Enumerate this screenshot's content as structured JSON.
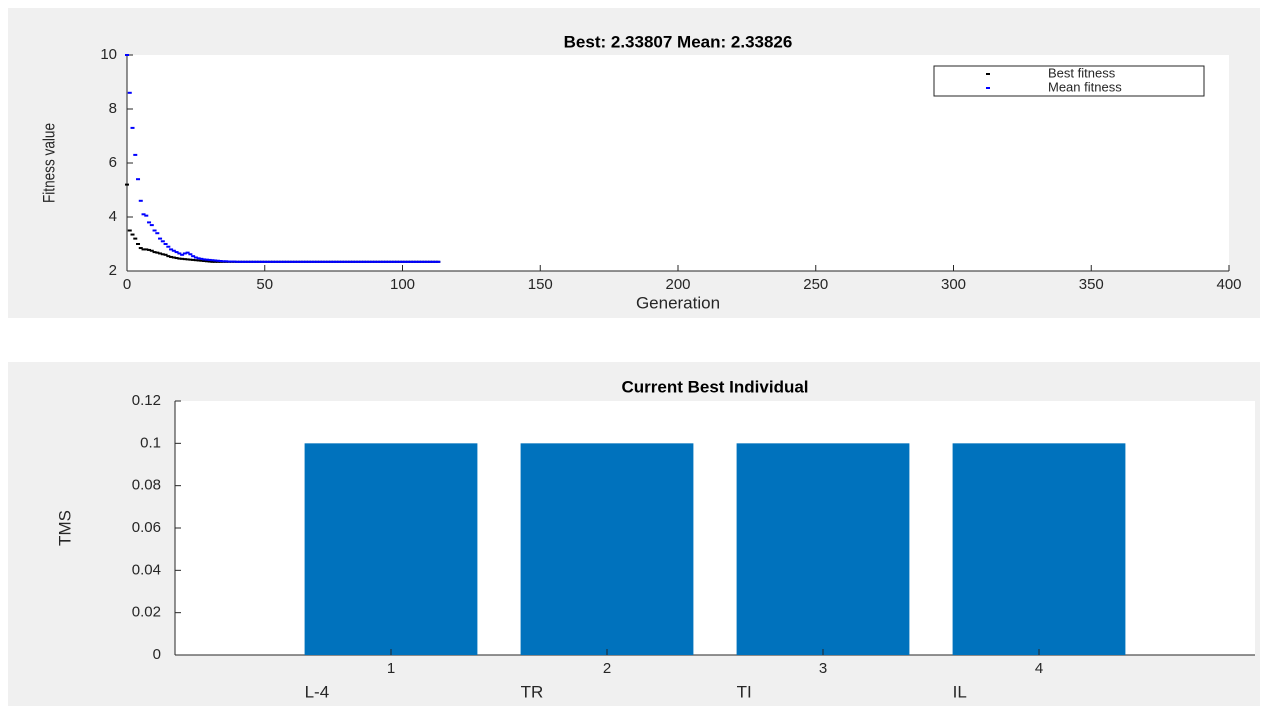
{
  "chart_data": [
    {
      "type": "scatter",
      "title": "Best: 2.33807 Mean: 2.33826",
      "x_label": "Generation",
      "y_label": "Fitness value",
      "x": [
        0,
        1,
        2,
        3,
        4,
        5,
        6,
        7,
        8,
        9,
        10,
        11,
        12,
        13,
        14,
        15,
        16,
        17,
        18,
        19,
        20,
        21,
        22,
        23,
        24,
        25,
        26,
        27,
        28,
        29,
        30,
        31,
        32,
        33,
        34,
        35,
        36,
        37,
        38,
        39,
        40,
        41,
        42,
        43,
        44,
        45,
        46,
        47,
        48,
        49,
        50,
        51,
        52,
        53,
        54,
        55,
        56,
        57,
        58,
        59,
        60,
        61,
        62,
        63,
        64,
        65,
        66,
        67,
        68,
        69,
        70,
        71,
        72,
        73,
        74,
        75,
        76,
        77,
        78,
        79,
        80,
        81,
        82,
        83,
        84,
        85,
        86,
        87,
        88,
        89,
        90,
        91,
        92,
        93,
        94,
        95,
        96,
        97,
        98,
        99,
        100,
        101,
        102,
        103,
        104,
        105,
        106,
        107,
        108,
        109,
        110,
        111,
        112,
        113
      ],
      "series": [
        {
          "name": "Best fitness",
          "color": "#000000",
          "values": [
            5.2,
            3.5,
            3.35,
            3.2,
            3.0,
            2.85,
            2.8,
            2.8,
            2.78,
            2.75,
            2.7,
            2.68,
            2.65,
            2.62,
            2.6,
            2.55,
            2.52,
            2.5,
            2.48,
            2.46,
            2.45,
            2.44,
            2.43,
            2.42,
            2.41,
            2.4,
            2.39,
            2.38,
            2.37,
            2.36,
            2.35,
            2.34,
            2.34,
            2.34,
            2.34,
            2.34,
            2.34,
            2.34,
            2.34,
            2.34,
            2.34,
            2.34,
            2.34,
            2.34,
            2.34,
            2.34,
            2.34,
            2.34,
            2.34,
            2.34,
            2.34,
            2.34,
            2.34,
            2.34,
            2.34,
            2.34,
            2.34,
            2.34,
            2.34,
            2.34,
            2.34,
            2.34,
            2.34,
            2.34,
            2.34,
            2.34,
            2.34,
            2.34,
            2.34,
            2.34,
            2.34,
            2.34,
            2.34,
            2.34,
            2.34,
            2.34,
            2.34,
            2.34,
            2.34,
            2.34,
            2.34,
            2.34,
            2.34,
            2.34,
            2.34,
            2.34,
            2.34,
            2.34,
            2.34,
            2.34,
            2.34,
            2.34,
            2.34,
            2.34,
            2.34,
            2.34,
            2.34,
            2.34,
            2.34,
            2.34,
            2.34,
            2.34,
            2.34,
            2.34,
            2.34,
            2.34,
            2.34,
            2.34,
            2.34,
            2.34,
            2.34,
            2.34,
            2.34,
            2.34
          ]
        },
        {
          "name": "Mean fitness",
          "color": "#0000ff",
          "values": [
            10,
            8.6,
            7.3,
            6.3,
            5.4,
            4.6,
            4.1,
            4.05,
            3.8,
            3.7,
            3.5,
            3.4,
            3.2,
            3.1,
            3.0,
            2.9,
            2.8,
            2.75,
            2.7,
            2.65,
            2.6,
            2.65,
            2.68,
            2.62,
            2.55,
            2.5,
            2.47,
            2.45,
            2.43,
            2.42,
            2.41,
            2.4,
            2.39,
            2.38,
            2.37,
            2.36,
            2.36,
            2.35,
            2.35,
            2.35,
            2.34,
            2.34,
            2.34,
            2.34,
            2.34,
            2.34,
            2.34,
            2.34,
            2.34,
            2.34,
            2.34,
            2.34,
            2.34,
            2.34,
            2.34,
            2.34,
            2.34,
            2.34,
            2.34,
            2.34,
            2.34,
            2.34,
            2.34,
            2.34,
            2.34,
            2.34,
            2.34,
            2.34,
            2.34,
            2.34,
            2.34,
            2.34,
            2.34,
            2.34,
            2.34,
            2.34,
            2.34,
            2.34,
            2.34,
            2.34,
            2.34,
            2.34,
            2.34,
            2.34,
            2.34,
            2.34,
            2.34,
            2.34,
            2.34,
            2.34,
            2.34,
            2.34,
            2.34,
            2.34,
            2.34,
            2.34,
            2.34,
            2.34,
            2.34,
            2.34,
            2.34,
            2.34,
            2.34,
            2.34,
            2.34,
            2.34,
            2.34,
            2.34,
            2.34,
            2.34,
            2.34,
            2.34,
            2.34,
            2.34
          ]
        }
      ],
      "xlim": [
        0,
        400
      ],
      "xticks": [
        0,
        50,
        100,
        150,
        200,
        250,
        300,
        350,
        400
      ],
      "ylim": [
        2,
        10
      ],
      "yticks": [
        2,
        4,
        6,
        8,
        10
      ],
      "grid": false,
      "legend": "northeast"
    },
    {
      "type": "bar",
      "title": "Current Best Individual",
      "y_label": "TMS",
      "categories": [
        "1",
        "2",
        "3",
        "4"
      ],
      "category_names": [
        "L-4",
        "TR",
        "TI",
        "IL"
      ],
      "values": [
        0.1,
        0.1,
        0.1,
        0.1
      ],
      "color": "#0072bd",
      "xlim": [
        0,
        5
      ],
      "ylim": [
        0,
        0.12
      ],
      "yticks": [
        0,
        0.02,
        0.04,
        0.06,
        0.08,
        0.1,
        0.12
      ],
      "grid": false
    }
  ]
}
